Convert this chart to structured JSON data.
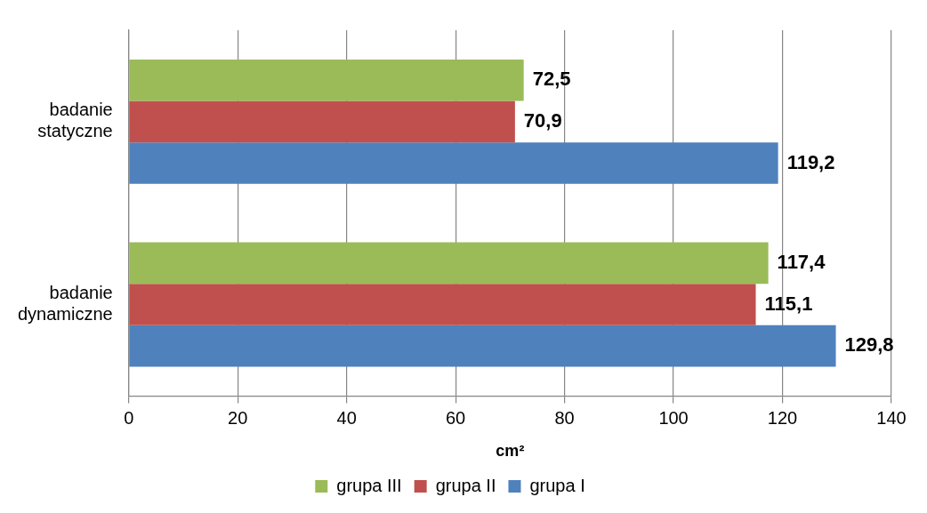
{
  "chart_data": {
    "type": "bar",
    "orientation": "horizontal",
    "xlabel": "cm²",
    "categories": [
      "badanie statyczne",
      "badanie dynamiczne"
    ],
    "series": [
      {
        "name": "grupa III",
        "color": "#9bbb59",
        "values": [
          72.5,
          117.4
        ],
        "value_labels": [
          "72,5",
          "117,4"
        ]
      },
      {
        "name": "grupa II",
        "color": "#c0504d",
        "values": [
          70.9,
          115.1
        ],
        "value_labels": [
          "70,9",
          "115,1"
        ]
      },
      {
        "name": "grupa I",
        "color": "#4f81bd",
        "values": [
          119.2,
          129.8
        ],
        "value_labels": [
          "119,2",
          "129,8"
        ]
      }
    ],
    "xlim": [
      0,
      140
    ],
    "xticks": [
      0,
      20,
      40,
      60,
      80,
      100,
      120,
      140
    ],
    "grid": "x",
    "legend": "bottom"
  }
}
